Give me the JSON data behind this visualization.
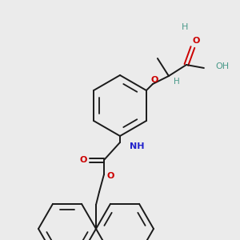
{
  "background_color": "#ebebeb",
  "bond_color": "#1a1a1a",
  "oxygen_color": "#cc0000",
  "nitrogen_color": "#2222cc",
  "hydrogen_color": "#4a9a8a",
  "figsize": [
    3.0,
    3.0
  ],
  "dpi": 100,
  "xlim": [
    0,
    300
  ],
  "ylim": [
    0,
    300
  ]
}
